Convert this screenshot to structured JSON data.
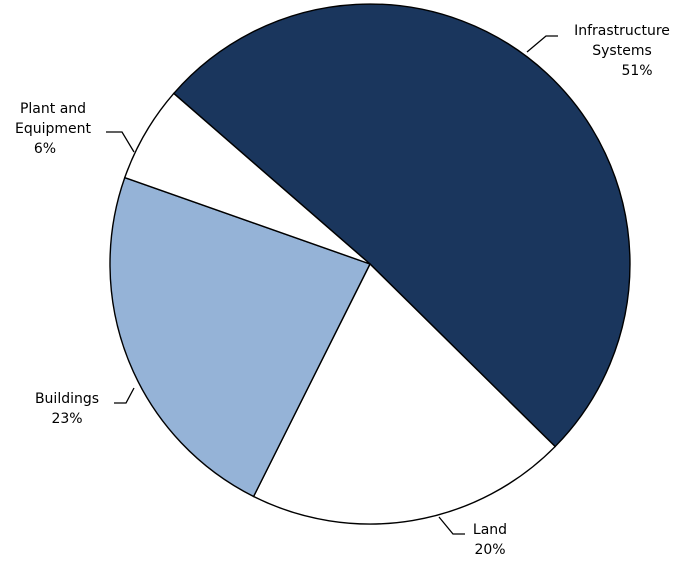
{
  "chart_data": {
    "type": "pie",
    "title": "",
    "legend": "none",
    "slices": [
      {
        "label": "Infrastructure Systems",
        "label_lines": [
          "Infrastructure",
          "Systems"
        ],
        "value": 51,
        "value_text": "51%",
        "color": "#1a365d"
      },
      {
        "label": "Land",
        "label_lines": [
          "Land"
        ],
        "value": 20,
        "value_text": "20%",
        "color": "#ffffff"
      },
      {
        "label": "Buildings",
        "label_lines": [
          "Buildings"
        ],
        "value": 23,
        "value_text": "23%",
        "color": "#95b3d7"
      },
      {
        "label": "Plant and Equipment",
        "label_lines": [
          "Plant and",
          "Equipment"
        ],
        "value": 6,
        "value_text": "6%",
        "color": "#ffffff"
      }
    ]
  }
}
